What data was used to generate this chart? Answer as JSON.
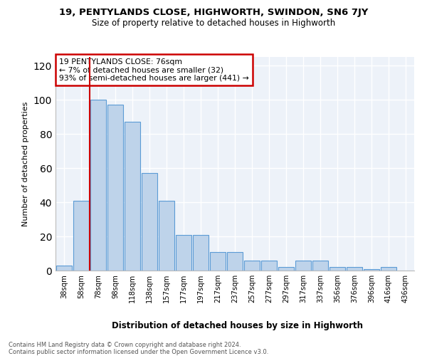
{
  "title_line1": "19, PENTYLANDS CLOSE, HIGHWORTH, SWINDON, SN6 7JY",
  "title_line2": "Size of property relative to detached houses in Highworth",
  "xlabel": "Distribution of detached houses by size in Highworth",
  "ylabel": "Number of detached properties",
  "bar_values": [
    3,
    41,
    100,
    97,
    87,
    57,
    41,
    21,
    21,
    11,
    11,
    6,
    6,
    2,
    6,
    6,
    2,
    2,
    1,
    2,
    0
  ],
  "x_labels": [
    "38sqm",
    "58sqm",
    "78sqm",
    "98sqm",
    "118sqm",
    "138sqm",
    "157sqm",
    "177sqm",
    "197sqm",
    "217sqm",
    "237sqm",
    "257sqm",
    "277sqm",
    "297sqm",
    "317sqm",
    "337sqm",
    "356sqm",
    "376sqm",
    "396sqm",
    "416sqm",
    "436sqm"
  ],
  "bar_color": "#bed3ea",
  "bar_edge_color": "#5b9bd5",
  "vline_x": 1.5,
  "vline_color": "#cc0000",
  "annotation_text": "19 PENTYLANDS CLOSE: 76sqm\n← 7% of detached houses are smaller (32)\n93% of semi-detached houses are larger (441) →",
  "ylim": [
    0,
    125
  ],
  "yticks": [
    0,
    20,
    40,
    60,
    80,
    100,
    120
  ],
  "background_color": "#edf2f9",
  "footer_text": "Contains HM Land Registry data © Crown copyright and database right 2024.\nContains public sector information licensed under the Open Government Licence v3.0."
}
